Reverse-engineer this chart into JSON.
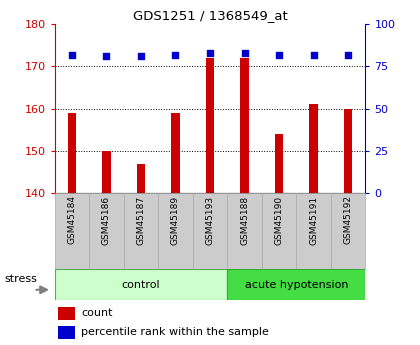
{
  "title": "GDS1251 / 1368549_at",
  "samples": [
    "GSM45184",
    "GSM45186",
    "GSM45187",
    "GSM45189",
    "GSM45193",
    "GSM45188",
    "GSM45190",
    "GSM45191",
    "GSM45192"
  ],
  "counts": [
    159,
    150,
    147,
    159,
    172,
    172,
    154,
    161,
    160
  ],
  "percentile_ranks": [
    82,
    81,
    81,
    82,
    83,
    83,
    82,
    82,
    82
  ],
  "group_labels": [
    "control",
    "acute hypotension"
  ],
  "control_count": 5,
  "acute_count": 4,
  "group_color_control": "#ccffcc",
  "group_color_acute": "#44dd44",
  "ylim_left": [
    140,
    180
  ],
  "ylim_right": [
    0,
    100
  ],
  "yticks_left": [
    140,
    150,
    160,
    170,
    180
  ],
  "yticks_right": [
    0,
    25,
    50,
    75,
    100
  ],
  "bar_color": "#cc0000",
  "dot_color": "#0000cc",
  "bar_width": 0.25,
  "axis_color_left": "#cc0000",
  "axis_color_right": "#0000cc",
  "stress_label": "stress",
  "legend_count": "count",
  "legend_percentile": "percentile rank within the sample",
  "tick_bg_color": "#cccccc",
  "grid_color": "#000000",
  "dot_size": 20
}
